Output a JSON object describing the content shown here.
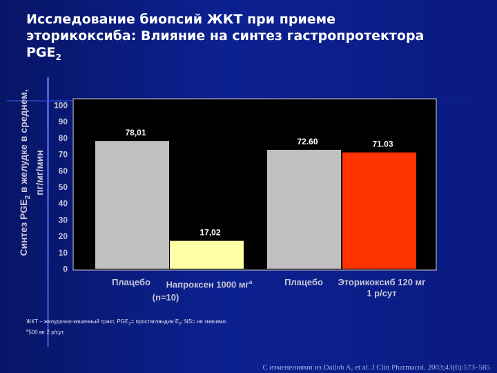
{
  "slide": {
    "title_line1": "Исследование биопсий ЖКТ при приеме",
    "title_line2": "эторикоксиба: Влияние на синтез гастропротектора",
    "title_line3": "PGE",
    "title_line3_sub": "2"
  },
  "chart_data": {
    "type": "bar",
    "ylabel_part1": "Синтез PGE",
    "ylabel_sub": "2",
    "ylabel_part2": " в желудке в среднем,",
    "ylabel_line2": "пг/мг/мин",
    "ylim": [
      0,
      100
    ],
    "yticks": [
      "0",
      "10",
      "20",
      "30",
      "40",
      "50",
      "60",
      "70",
      "80",
      "90",
      "100"
    ],
    "grid": false,
    "bars": [
      {
        "category": "Плацебо",
        "value": 78.01,
        "label": "78,01",
        "color": "#c0c0c0"
      },
      {
        "category": "Напроксен 1000 мг",
        "value": 17.02,
        "label": "17,02",
        "color": "#ffffa6"
      },
      {
        "category": "Плацебо",
        "value": 72.6,
        "label": "72.60",
        "color": "#c0c0c0"
      },
      {
        "category": "Эторикоксиб 120 мг 1 р/сут",
        "value": 71.03,
        "label": "71.03",
        "color": "#ff3300"
      }
    ],
    "xlabels": {
      "placebo1": "Плацебо",
      "naproxen": "Напроксен 1000 мг",
      "naproxen_sup": "a",
      "group1_n": "(n=10)",
      "placebo2": "Плацебо",
      "etoricoxib_line1": "Эторикоксиб 120 мг",
      "etoricoxib_line2": "1 р/сут"
    },
    "colors": {
      "plot_bg": "#000000",
      "frame": "#8f8fb0",
      "tick": "#c8c8d8",
      "value_label": "#ffffff"
    }
  },
  "footnotes": {
    "line1_a": "ЖКТ – желудочно-кишечный тракт, PGE",
    "line1_sub1": "2",
    "line1_b": "= простагландин E",
    "line1_sub2": "2",
    "line1_c": "; NS= не значимо.",
    "line2_sup": "a",
    "line2": "500 мг 2 р/сут."
  },
  "reference": "С изменениями из Dallob A, et al. J Clin Pharmacol. 2003;43(6):573–585"
}
